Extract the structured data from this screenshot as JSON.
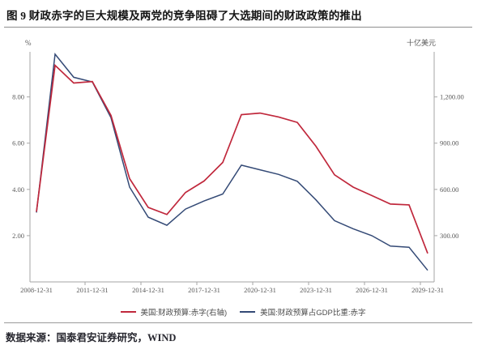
{
  "title": "图 9  财政赤字的巨大规模及两党的竞争阻碍了大选期间的财政政策的推出",
  "source": "数据来源：国泰君安证券研究，WIND",
  "chart_data": {
    "type": "line",
    "categories": [
      "2008-12-31",
      "2009-12-31",
      "2010-12-31",
      "2011-12-31",
      "2012-12-31",
      "2013-12-31",
      "2014-12-31",
      "2015-12-31",
      "2016-12-31",
      "2017-12-31",
      "2018-12-31",
      "2019-12-31",
      "2020-12-31",
      "2021-12-31",
      "2022-12-31",
      "2023-12-31",
      "2024-12-31",
      "2025-12-31",
      "2026-12-31",
      "2027-12-31",
      "2028-12-31",
      "2029-12-31"
    ],
    "x_tick_labels": [
      "2008-12-31",
      "2011-12-31",
      "2014-12-31",
      "2017-12-31",
      "2020-12-31",
      "2023-12-31",
      "2026-12-31",
      "2029-12-31"
    ],
    "left_axis": {
      "unit": "%",
      "tick_values": [
        2,
        4,
        6,
        8
      ],
      "tick_labels": [
        "2.00",
        "4.00",
        "6.00",
        "8.00"
      ],
      "min": 0,
      "max": 9.95
    },
    "right_axis": {
      "unit": "十亿美元",
      "tick_values": [
        300,
        600,
        900,
        1200
      ],
      "tick_labels": [
        "300.00",
        "600.00",
        "900.00",
        "1,200.00"
      ],
      "min": 0,
      "max": 1492.5
    },
    "series": [
      {
        "name": "美国:财政预算:赤字(右轴)",
        "axis": "right",
        "color": "#c0283c",
        "values": [
          455,
          1405,
          1290,
          1300,
          1080,
          670,
          483,
          437,
          580,
          655,
          775,
          1085,
          1095,
          1070,
          1035,
          880,
          695,
          615,
          560,
          505,
          500,
          185
        ]
      },
      {
        "name": "美国:财政预算占GDP比重:赤字",
        "axis": "left",
        "color": "#344a76",
        "values": [
          3.0,
          9.85,
          8.85,
          8.65,
          7.1,
          4.1,
          2.8,
          2.45,
          3.15,
          3.5,
          3.8,
          5.05,
          4.85,
          4.65,
          4.35,
          3.55,
          2.65,
          2.3,
          2.0,
          1.55,
          1.5,
          0.5
        ]
      }
    ],
    "legend_position": "bottom",
    "grid": false,
    "colors": {
      "axis_line": "#a6a6a6",
      "tick_label": "#595959",
      "red_series": "#c0283c",
      "blue_series": "#344a76"
    }
  }
}
